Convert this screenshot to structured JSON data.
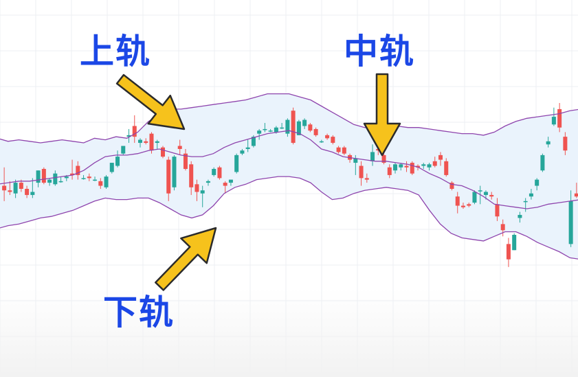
{
  "labels": {
    "upper": "上轨",
    "middle": "中轨",
    "lower": "下轨"
  },
  "colors": {
    "up_candle": "#26a69a",
    "down_candle": "#ef5350",
    "band_line": "#8e44ad",
    "band_fill": "#eaf3fc",
    "label_text": "#1b47e6",
    "arrow_fill": "#f6c21c",
    "arrow_stroke": "#2b2b2b",
    "grid": "#eceff3",
    "bottom_fade": "#f2f2f2"
  },
  "annotations": [
    {
      "target": "upper",
      "label_key": "upper",
      "icon": "arrow-down-right-icon"
    },
    {
      "target": "middle",
      "label_key": "middle",
      "icon": "arrow-down-icon"
    },
    {
      "target": "lower",
      "label_key": "lower",
      "icon": "arrow-up-right-icon"
    }
  ],
  "chart_data": {
    "type": "candlestick",
    "grid": true,
    "ylim": [
      0,
      100
    ],
    "candles": [
      {
        "o": 58,
        "h": 70,
        "l": 48,
        "c": 55
      },
      {
        "o": 55,
        "h": 61,
        "l": 52,
        "c": 54
      },
      {
        "o": 53,
        "h": 62,
        "l": 50,
        "c": 60
      },
      {
        "o": 60,
        "h": 62,
        "l": 54,
        "c": 56
      },
      {
        "o": 56,
        "h": 58,
        "l": 50,
        "c": 52
      },
      {
        "o": 52,
        "h": 63,
        "l": 50,
        "c": 54
      },
      {
        "o": 60,
        "h": 68,
        "l": 57,
        "c": 68
      },
      {
        "o": 69,
        "h": 70,
        "l": 59,
        "c": 60
      },
      {
        "o": 60,
        "h": 63,
        "l": 58,
        "c": 62
      },
      {
        "o": 59,
        "h": 68,
        "l": 58,
        "c": 66
      },
      {
        "o": 61,
        "h": 64,
        "l": 60,
        "c": 61
      },
      {
        "o": 63,
        "h": 65,
        "l": 61,
        "c": 64
      },
      {
        "o": 66,
        "h": 75,
        "l": 62,
        "c": 65
      },
      {
        "o": 71,
        "h": 74,
        "l": 62,
        "c": 65
      },
      {
        "o": 63,
        "h": 65,
        "l": 62,
        "c": 63
      },
      {
        "o": 64,
        "h": 66,
        "l": 61,
        "c": 63
      },
      {
        "o": 62,
        "h": 64,
        "l": 61,
        "c": 62
      },
      {
        "o": 61,
        "h": 63,
        "l": 56,
        "c": 58
      },
      {
        "o": 57,
        "h": 65,
        "l": 56,
        "c": 64
      },
      {
        "o": 67,
        "h": 73,
        "l": 66,
        "c": 73
      },
      {
        "o": 71,
        "h": 81,
        "l": 70,
        "c": 77
      },
      {
        "o": 79,
        "h": 84,
        "l": 78,
        "c": 84
      },
      {
        "o": 90,
        "h": 95,
        "l": 86,
        "c": 91
      },
      {
        "o": 97,
        "h": 104,
        "l": 86,
        "c": 90
      },
      {
        "o": 86,
        "h": 89,
        "l": 83,
        "c": 88
      },
      {
        "o": 87,
        "h": 89,
        "l": 85,
        "c": 86
      },
      {
        "o": 92,
        "h": 93,
        "l": 79,
        "c": 81
      },
      {
        "o": 86,
        "h": 88,
        "l": 82,
        "c": 87
      },
      {
        "o": 83,
        "h": 84,
        "l": 76,
        "c": 77
      },
      {
        "o": 75,
        "h": 77,
        "l": 48,
        "c": 53
      },
      {
        "o": 57,
        "h": 78,
        "l": 55,
        "c": 77
      },
      {
        "o": 84,
        "h": 88,
        "l": 78,
        "c": 82
      },
      {
        "o": 79,
        "h": 82,
        "l": 68,
        "c": 69
      },
      {
        "o": 72,
        "h": 74,
        "l": 52,
        "c": 57
      },
      {
        "o": 59,
        "h": 62,
        "l": 48,
        "c": 54
      },
      {
        "o": 53,
        "h": 58,
        "l": 44,
        "c": 55
      },
      {
        "o": 60,
        "h": 62,
        "l": 58,
        "c": 61
      },
      {
        "o": 65,
        "h": 70,
        "l": 64,
        "c": 69
      },
      {
        "o": 70,
        "h": 71,
        "l": 62,
        "c": 63
      },
      {
        "o": 60,
        "h": 61,
        "l": 53,
        "c": 58
      },
      {
        "o": 60,
        "h": 62,
        "l": 58,
        "c": 62
      },
      {
        "o": 67,
        "h": 79,
        "l": 66,
        "c": 78
      },
      {
        "o": 79,
        "h": 82,
        "l": 78,
        "c": 81
      },
      {
        "o": 82,
        "h": 88,
        "l": 80,
        "c": 83
      },
      {
        "o": 84,
        "h": 91,
        "l": 83,
        "c": 90
      },
      {
        "o": 92,
        "h": 95,
        "l": 88,
        "c": 94
      },
      {
        "o": 95,
        "h": 99,
        "l": 93,
        "c": 95
      },
      {
        "o": 94,
        "h": 95,
        "l": 93,
        "c": 94
      },
      {
        "o": 93,
        "h": 97,
        "l": 92,
        "c": 96
      },
      {
        "o": 96,
        "h": 99,
        "l": 95,
        "c": 96
      },
      {
        "o": 92,
        "h": 102,
        "l": 90,
        "c": 101
      },
      {
        "o": 107,
        "h": 109,
        "l": 85,
        "c": 86
      },
      {
        "o": 91,
        "h": 101,
        "l": 91,
        "c": 100
      },
      {
        "o": 97,
        "h": 102,
        "l": 95,
        "c": 101
      },
      {
        "o": 98,
        "h": 99,
        "l": 93,
        "c": 94
      },
      {
        "o": 95,
        "h": 96,
        "l": 90,
        "c": 91
      },
      {
        "o": 87,
        "h": 88,
        "l": 86,
        "c": 87
      },
      {
        "o": 91,
        "h": 92,
        "l": 88,
        "c": 89
      },
      {
        "o": 90,
        "h": 91,
        "l": 85,
        "c": 86
      },
      {
        "o": 83,
        "h": 84,
        "l": 79,
        "c": 80
      },
      {
        "o": 83,
        "h": 84,
        "l": 78,
        "c": 79
      },
      {
        "o": 78,
        "h": 79,
        "l": 73,
        "c": 75
      },
      {
        "o": 73,
        "h": 78,
        "l": 65,
        "c": 76
      },
      {
        "o": 71,
        "h": 74,
        "l": 58,
        "c": 63
      },
      {
        "o": 63,
        "h": 66,
        "l": 60,
        "c": 62
      },
      {
        "o": 74,
        "h": 85,
        "l": 71,
        "c": 80
      },
      {
        "o": 82,
        "h": 84,
        "l": 78,
        "c": 81
      },
      {
        "o": 78,
        "h": 82,
        "l": 72,
        "c": 73
      },
      {
        "o": 70,
        "h": 72,
        "l": 63,
        "c": 65
      },
      {
        "o": 68,
        "h": 73,
        "l": 66,
        "c": 72
      },
      {
        "o": 70,
        "h": 73,
        "l": 68,
        "c": 72
      },
      {
        "o": 71,
        "h": 74,
        "l": 67,
        "c": 70
      },
      {
        "o": 73,
        "h": 74,
        "l": 65,
        "c": 66
      },
      {
        "o": 71,
        "h": 72,
        "l": 68,
        "c": 70
      },
      {
        "o": 71,
        "h": 73,
        "l": 69,
        "c": 72
      },
      {
        "o": 70,
        "h": 73,
        "l": 68,
        "c": 72
      },
      {
        "o": 74,
        "h": 77,
        "l": 70,
        "c": 71
      },
      {
        "o": 78,
        "h": 80,
        "l": 71,
        "c": 75
      },
      {
        "o": 74,
        "h": 76,
        "l": 64,
        "c": 65
      },
      {
        "o": 60,
        "h": 61,
        "l": 55,
        "c": 56
      },
      {
        "o": 51,
        "h": 54,
        "l": 40,
        "c": 45
      },
      {
        "o": 45,
        "h": 47,
        "l": 43,
        "c": 44
      },
      {
        "o": 46,
        "h": 47,
        "l": 44,
        "c": 45
      },
      {
        "o": 47,
        "h": 55,
        "l": 46,
        "c": 54
      },
      {
        "o": 55,
        "h": 58,
        "l": 46,
        "c": 55
      },
      {
        "o": 52,
        "h": 55,
        "l": 49,
        "c": 54
      },
      {
        "o": 52,
        "h": 54,
        "l": 49,
        "c": 51
      },
      {
        "o": 46,
        "h": 50,
        "l": 35,
        "c": 38
      },
      {
        "o": 33,
        "h": 36,
        "l": 25,
        "c": 29
      },
      {
        "o": 20,
        "h": 24,
        "l": 5,
        "c": 10
      },
      {
        "o": 16,
        "h": 27,
        "l": 16,
        "c": 26
      },
      {
        "o": 37,
        "h": 41,
        "l": 34,
        "c": 39
      },
      {
        "o": 48,
        "h": 50,
        "l": 41,
        "c": 48
      },
      {
        "o": 51,
        "h": 56,
        "l": 49,
        "c": 53
      },
      {
        "o": 58,
        "h": 63,
        "l": 55,
        "c": 62
      },
      {
        "o": 68,
        "h": 79,
        "l": 67,
        "c": 78
      },
      {
        "o": 85,
        "h": 90,
        "l": 83,
        "c": 87
      },
      {
        "o": 98,
        "h": 109,
        "l": 97,
        "c": 103
      },
      {
        "o": 108,
        "h": 112,
        "l": 93,
        "c": 96
      },
      {
        "o": 90,
        "h": 93,
        "l": 78,
        "c": 81
      },
      {
        "o": 20,
        "h": 55,
        "l": 18,
        "c": 48
      },
      {
        "o": 53,
        "h": 60,
        "l": 50,
        "c": 51
      }
    ],
    "bands": {
      "upper": [
        89,
        87,
        88,
        87,
        86,
        87,
        88,
        87,
        86,
        89,
        88,
        90,
        89,
        93,
        100,
        104,
        108,
        108,
        109,
        110,
        111,
        112,
        113,
        114,
        116,
        118,
        118,
        118,
        116,
        114,
        110,
        106,
        102,
        98,
        96,
        96,
        97,
        97,
        96,
        96,
        95,
        94,
        93,
        92,
        92,
        91,
        93,
        97,
        100,
        102,
        103,
        104,
        105,
        107,
        108
      ],
      "middle": [
        59,
        60,
        61,
        61,
        62,
        63,
        64,
        65,
        68,
        73,
        77,
        78,
        78,
        79,
        81,
        82,
        80,
        78,
        77,
        77,
        79,
        83,
        86,
        88,
        90,
        92,
        93,
        94,
        92,
        88,
        82,
        80,
        77,
        76,
        75,
        74,
        74,
        73,
        72,
        70,
        66,
        63,
        59,
        58,
        55,
        51,
        46,
        45,
        44,
        43,
        44,
        46,
        47,
        48,
        49
      ],
      "lower": [
        30,
        32,
        33,
        35,
        37,
        38,
        40,
        42,
        45,
        48,
        50,
        49,
        49,
        50,
        50,
        47,
        43,
        39,
        37,
        39,
        45,
        53,
        57,
        59,
        62,
        63,
        64,
        64,
        63,
        60,
        54,
        49,
        50,
        53,
        55,
        56,
        57,
        56,
        55,
        52,
        42,
        33,
        27,
        24,
        23,
        22,
        25,
        28,
        28,
        25,
        21,
        18,
        15,
        11,
        10
      ]
    }
  }
}
